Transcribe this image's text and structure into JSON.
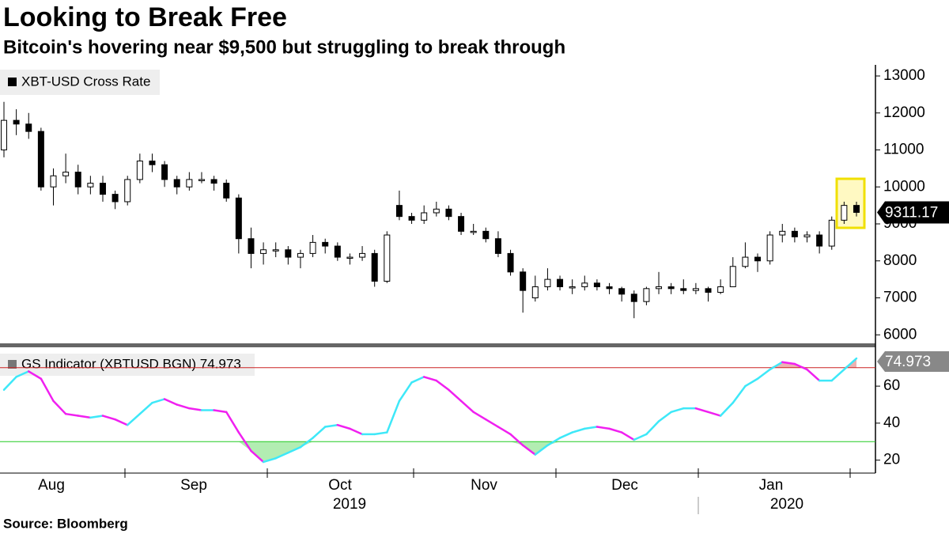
{
  "title": "Looking to Break Free",
  "subtitle": "Bitcoin's hovering near $9,500 but struggling to break through",
  "source": "Source: Bloomberg",
  "x_axis": {
    "months": [
      "Aug",
      "Sep",
      "Oct",
      "Nov",
      "Dec",
      "Jan"
    ],
    "years": [
      "2019",
      "2020"
    ]
  },
  "chart_data": [
    {
      "type": "candlestick",
      "legend": "XBT-USD Cross Rate",
      "up_color": "#ffffff",
      "down_color": "#000000",
      "ylim": [
        5770,
        13300
      ],
      "yticks": [
        6000,
        7000,
        8000,
        9000,
        10000,
        11000,
        12000,
        13000
      ],
      "ohlc": [
        [
          11000,
          12300,
          10800,
          11800
        ],
        [
          11800,
          12100,
          11400,
          11700
        ],
        [
          11700,
          12000,
          11300,
          11500
        ],
        [
          11500,
          11600,
          9900,
          10000
        ],
        [
          10000,
          10500,
          9500,
          10300
        ],
        [
          10300,
          10900,
          10100,
          10400
        ],
        [
          10400,
          10600,
          9800,
          10000
        ],
        [
          10000,
          10300,
          9800,
          10100
        ],
        [
          10100,
          10300,
          9600,
          9800
        ],
        [
          9800,
          9900,
          9400,
          9600
        ],
        [
          9600,
          10300,
          9500,
          10200
        ],
        [
          10200,
          10900,
          10100,
          10700
        ],
        [
          10700,
          10900,
          10400,
          10600
        ],
        [
          10600,
          10700,
          10000,
          10200
        ],
        [
          10200,
          10300,
          9800,
          10000
        ],
        [
          10000,
          10400,
          9900,
          10200
        ],
        [
          10200,
          10400,
          10100,
          10200
        ],
        [
          10200,
          10300,
          9900,
          10100
        ],
        [
          10100,
          10200,
          9600,
          9700
        ],
        [
          9700,
          9800,
          8200,
          8600
        ],
        [
          8600,
          8900,
          7800,
          8200
        ],
        [
          8200,
          8500,
          7900,
          8300
        ],
        [
          8300,
          8500,
          8100,
          8300
        ],
        [
          8300,
          8400,
          7900,
          8100
        ],
        [
          8100,
          8300,
          7800,
          8200
        ],
        [
          8200,
          8700,
          8100,
          8500
        ],
        [
          8500,
          8600,
          8200,
          8400
        ],
        [
          8400,
          8500,
          8000,
          8100
        ],
        [
          8100,
          8200,
          7900,
          8100
        ],
        [
          8100,
          8400,
          8000,
          8200
        ],
        [
          8200,
          8300,
          7300,
          7450
        ],
        [
          7450,
          8800,
          7400,
          8700
        ],
        [
          9500,
          9900,
          9100,
          9200
        ],
        [
          9200,
          9300,
          9000,
          9100
        ],
        [
          9100,
          9500,
          9000,
          9300
        ],
        [
          9300,
          9600,
          9200,
          9400
        ],
        [
          9400,
          9500,
          9100,
          9200
        ],
        [
          9200,
          9300,
          8700,
          8800
        ],
        [
          8800,
          9000,
          8700,
          8800
        ],
        [
          8800,
          8900,
          8500,
          8600
        ],
        [
          8600,
          8800,
          8100,
          8200
        ],
        [
          8200,
          8300,
          7600,
          7700
        ],
        [
          7700,
          7800,
          6600,
          7200
        ],
        [
          7000,
          7600,
          6900,
          7300
        ],
        [
          7300,
          7800,
          7200,
          7500
        ],
        [
          7500,
          7600,
          7200,
          7300
        ],
        [
          7300,
          7500,
          7100,
          7300
        ],
        [
          7300,
          7600,
          7200,
          7400
        ],
        [
          7400,
          7500,
          7200,
          7300
        ],
        [
          7300,
          7400,
          7100,
          7250
        ],
        [
          7250,
          7300,
          6900,
          7100
        ],
        [
          7100,
          7200,
          6450,
          6900
        ],
        [
          6900,
          7300,
          6800,
          7250
        ],
        [
          7250,
          7700,
          7100,
          7300
        ],
        [
          7300,
          7400,
          7100,
          7250
        ],
        [
          7250,
          7500,
          7100,
          7200
        ],
        [
          7200,
          7400,
          7100,
          7250
        ],
        [
          7250,
          7300,
          6900,
          7150
        ],
        [
          7150,
          7500,
          7100,
          7300
        ],
        [
          7300,
          8100,
          7300,
          7850
        ],
        [
          7850,
          8500,
          7800,
          8100
        ],
        [
          8100,
          8200,
          7700,
          8000
        ],
        [
          8000,
          8800,
          7900,
          8700
        ],
        [
          8700,
          9000,
          8500,
          8800
        ],
        [
          8800,
          8900,
          8500,
          8650
        ],
        [
          8650,
          8800,
          8500,
          8700
        ],
        [
          8700,
          8800,
          8200,
          8400
        ],
        [
          8400,
          9200,
          8300,
          9100
        ],
        [
          9100,
          9600,
          9000,
          9500
        ],
        [
          9500,
          9600,
          9200,
          9311.17
        ]
      ],
      "last_value_label": "9311.17"
    },
    {
      "type": "line",
      "legend": "GS Indicator (XBTUSD BGN) 74.973",
      "rising_color": "#3ee8f8",
      "falling_color": "#f020f0",
      "ylim": [
        13,
        81
      ],
      "yticks": [
        20,
        40,
        60
      ],
      "upper_line": 70,
      "upper_color": "#cc2222",
      "lower_line": 30,
      "lower_color": "#22cc22",
      "values": [
        58,
        65,
        68,
        64,
        52,
        45,
        44,
        43,
        44,
        42,
        39,
        45,
        51,
        53,
        50,
        48,
        47,
        47,
        46,
        35,
        25,
        19,
        21,
        24,
        27,
        32,
        38,
        39,
        37,
        34,
        34,
        35,
        52,
        62,
        65,
        63,
        58,
        52,
        46,
        42,
        38,
        34,
        28,
        23,
        28,
        32,
        35,
        37,
        38,
        37,
        35,
        31,
        34,
        41,
        46,
        48,
        48,
        46,
        44,
        51,
        60,
        64,
        69,
        73,
        72,
        69,
        63,
        63,
        69,
        74.973
      ],
      "last_value_label": "74.973"
    }
  ]
}
